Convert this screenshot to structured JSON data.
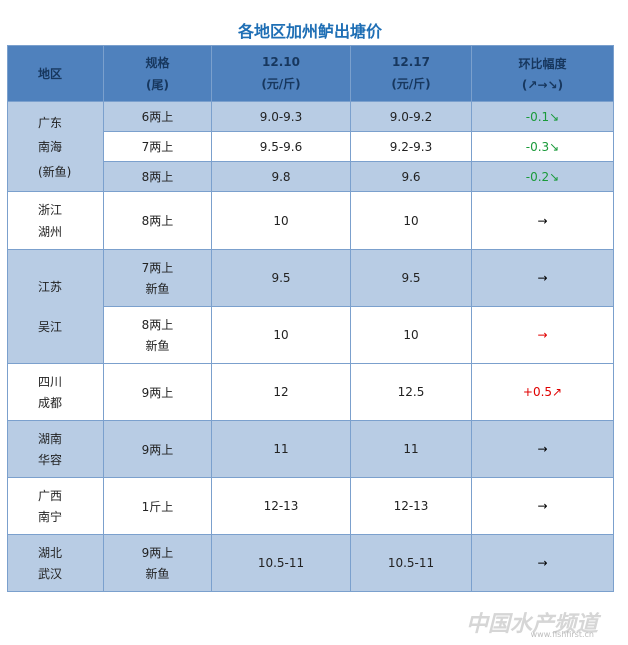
{
  "title": "各地区加州鲈出塘价",
  "header": [
    [
      "地区"
    ],
    [
      "规格",
      "(尾)"
    ],
    [
      "12.10",
      "(元/斤)"
    ],
    [
      "12.17",
      "(元/斤)"
    ],
    [
      "环比幅度",
      "(↗→↘)"
    ]
  ],
  "groups": [
    {
      "region": [
        "广东",
        "南海",
        "(新鱼)"
      ],
      "rows": [
        {
          "spec": [
            "6两上"
          ],
          "price_1210": "9.0-9.3",
          "price_1217": "9.0-9.2",
          "change": "-0.1↘",
          "change_color": "#1a9a3a"
        },
        {
          "spec": [
            "7两上"
          ],
          "price_1210": "9.5-9.6",
          "price_1217": "9.2-9.3",
          "change": "-0.3↘",
          "change_color": "#1a9a3a"
        },
        {
          "spec": [
            "8两上"
          ],
          "price_1210": "9.8",
          "price_1217": "9.6",
          "change": "-0.2↘",
          "change_color": "#1a9a3a"
        }
      ]
    },
    {
      "region": [
        "浙江",
        "湖州"
      ],
      "rows": [
        {
          "spec": [
            "8两上"
          ],
          "price_1210": "10",
          "price_1217": "10",
          "change": "→",
          "change_color": "#000000"
        }
      ]
    },
    {
      "region": [
        "江苏",
        "吴江"
      ],
      "rows": [
        {
          "spec": [
            "7两上",
            "新鱼"
          ],
          "price_1210": "9.5",
          "price_1217": "9.5",
          "change": "→",
          "change_color": "#000000"
        },
        {
          "spec": [
            "8两上",
            "新鱼"
          ],
          "price_1210": "10",
          "price_1217": "10",
          "change": "→",
          "change_color": "#e00000"
        }
      ]
    },
    {
      "region": [
        "四川",
        "成都"
      ],
      "rows": [
        {
          "spec": [
            "9两上"
          ],
          "price_1210": "12",
          "price_1217": "12.5",
          "change": "+0.5↗",
          "change_color": "#e00000"
        }
      ]
    },
    {
      "region": [
        "湖南",
        "华容"
      ],
      "rows": [
        {
          "spec": [
            "9两上"
          ],
          "price_1210": "11",
          "price_1217": "11",
          "change": "→",
          "change_color": "#000000"
        }
      ]
    },
    {
      "region": [
        "广西",
        "南宁"
      ],
      "rows": [
        {
          "spec": [
            "1斤上"
          ],
          "price_1210": "12-13",
          "price_1217": "12-13",
          "change": "→",
          "change_color": "#000000"
        }
      ]
    },
    {
      "region": [
        "湖北",
        "武汉"
      ],
      "rows": [
        {
          "spec": [
            "9两上",
            "新鱼"
          ],
          "price_1210": "10.5-11",
          "price_1217": "10.5-11",
          "change": "→",
          "change_color": "#000000"
        }
      ]
    }
  ],
  "watermark": {
    "name": "中国水产频道",
    "url": "www.fishfirst.cn"
  }
}
